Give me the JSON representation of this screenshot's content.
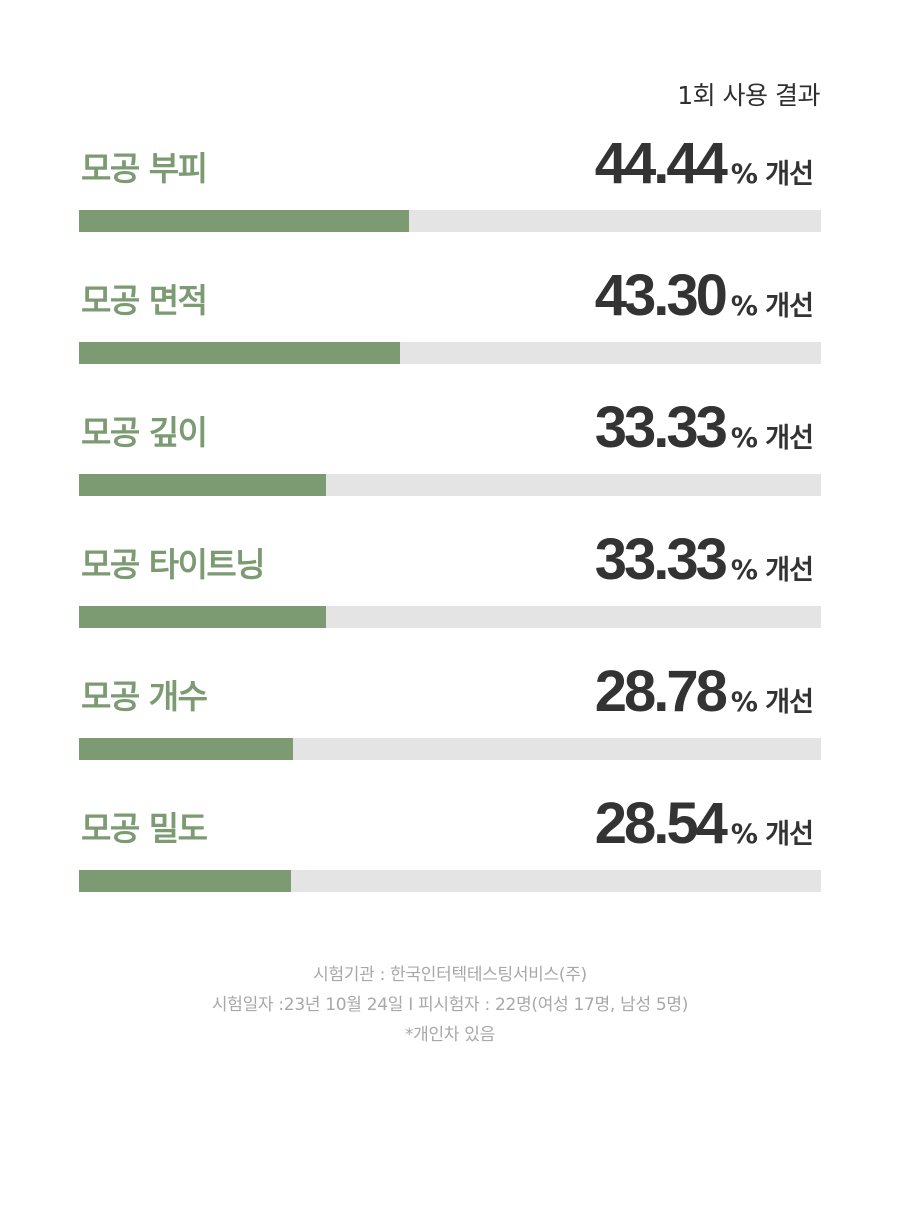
{
  "header": {
    "title": "1회 사용 결과"
  },
  "chart_data": {
    "type": "bar",
    "title": "1회 사용 결과",
    "categories": [
      "모공 부피",
      "모공 면적",
      "모공 깊이",
      "모공 타이트닝",
      "모공 개수",
      "모공 밀도"
    ],
    "values": [
      44.44,
      43.3,
      33.33,
      33.33,
      28.78,
      28.54
    ],
    "value_labels": [
      "44.44",
      "43.30",
      "33.33",
      "33.33",
      "28.78",
      "28.54"
    ],
    "unit_label": "% 개선",
    "ylim": [
      0,
      100
    ],
    "orientation": "horizontal",
    "grid": false,
    "colors": {
      "bar": "#7d9b72",
      "track": "#e4e4e4",
      "label": "#7d9b72",
      "value": "#333333"
    }
  },
  "footer": {
    "line1": "시험기관 : 한국인터텍테스팅서비스(주)",
    "line2": "시험일자 :23년 10월 24일 I 피시험자 : 22명(여성 17명, 남성 5명)",
    "line3": "*개인차 있음"
  }
}
